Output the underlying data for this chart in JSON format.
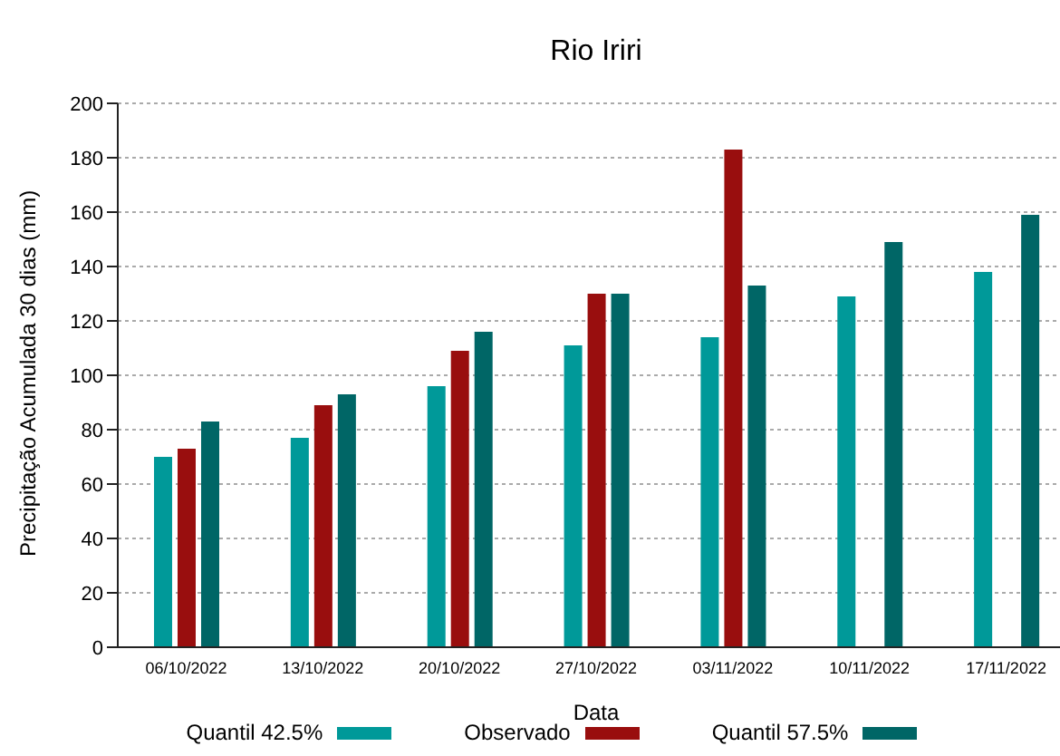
{
  "chart_data": {
    "type": "bar",
    "title": "Rio Iriri",
    "xlabel": "Data",
    "ylabel": "Precipitação Acumulada 30 dias (mm)",
    "categories": [
      "06/10/2022",
      "13/10/2022",
      "20/10/2022",
      "27/10/2022",
      "03/11/2022",
      "10/11/2022",
      "17/11/2022"
    ],
    "series": [
      {
        "name": "Quantil 42.5%",
        "color": "#009999",
        "values": [
          70,
          77,
          96,
          111,
          114,
          129,
          138
        ]
      },
      {
        "name": "Observado",
        "color": "#990e0e",
        "values": [
          73,
          89,
          109,
          130,
          183,
          null,
          null
        ]
      },
      {
        "name": "Quantil 57.5%",
        "color": "#006666",
        "values": [
          83,
          93,
          116,
          130,
          133,
          149,
          159
        ]
      }
    ],
    "ylim": [
      0,
      200
    ],
    "yticks": [
      0,
      20,
      40,
      60,
      80,
      100,
      120,
      140,
      160,
      180,
      200
    ],
    "grid": "y",
    "legend": "bottom"
  }
}
